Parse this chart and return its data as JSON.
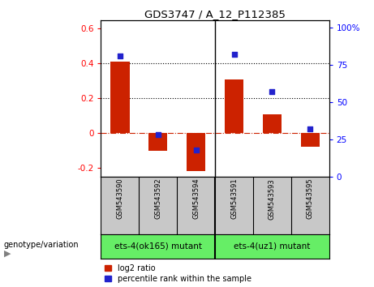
{
  "title": "GDS3747 / A_12_P112385",
  "categories": [
    "GSM543590",
    "GSM543592",
    "GSM543594",
    "GSM543591",
    "GSM543593",
    "GSM543595"
  ],
  "log2_ratio": [
    0.41,
    -0.1,
    -0.22,
    0.31,
    0.11,
    -0.08
  ],
  "percentile_rank": [
    81,
    28,
    18,
    82,
    57,
    32
  ],
  "ylim_left": [
    -0.25,
    0.65
  ],
  "ylim_right": [
    0,
    105
  ],
  "yticks_left": [
    -0.2,
    0.0,
    0.2,
    0.4,
    0.6
  ],
  "yticks_right": [
    0,
    25,
    50,
    75,
    100
  ],
  "ytick_labels_left": [
    "-0.2",
    "0",
    "0.2",
    "0.4",
    "0.6"
  ],
  "ytick_labels_right": [
    "0",
    "25",
    "50",
    "75",
    "100%"
  ],
  "hlines": [
    0.2,
    0.4
  ],
  "bar_color": "#cc2200",
  "dot_color": "#2222cc",
  "zero_line_color": "#cc2200",
  "group1_label": "ets-4(ok165) mutant",
  "group2_label": "ets-4(uz1) mutant",
  "group_bg_color": "#66ee66",
  "sample_bg_color": "#c8c8c8",
  "legend_bar_label": "log2 ratio",
  "legend_dot_label": "percentile rank within the sample",
  "genotype_label": "genotype/variation"
}
